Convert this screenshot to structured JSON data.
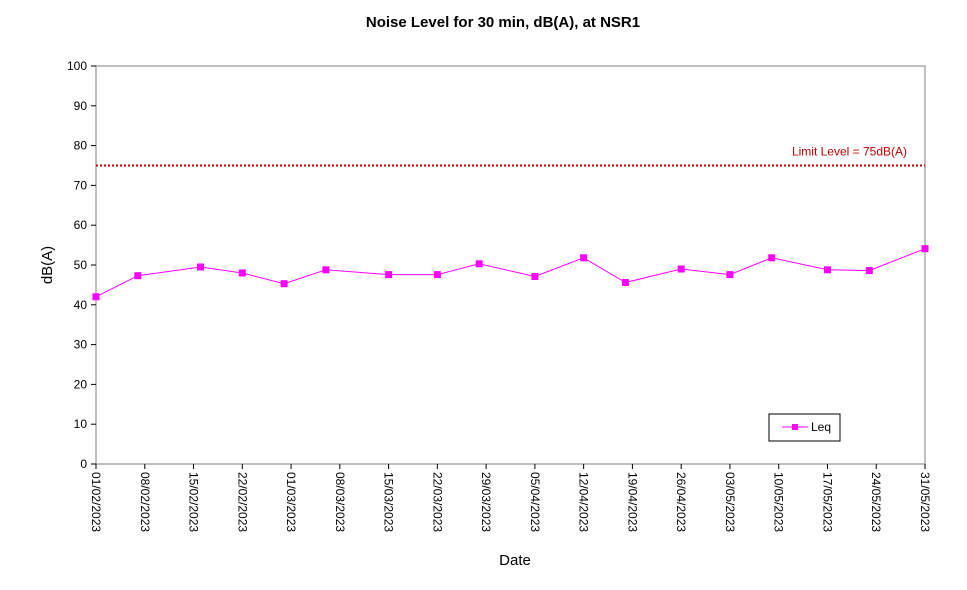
{
  "chart_data": {
    "type": "line",
    "title": "Noise Level for 30 min, dB(A), at NSR1",
    "xlabel": "Date",
    "ylabel": "dB(A)",
    "ylim": [
      0,
      100
    ],
    "yticks": [
      0,
      10,
      20,
      30,
      40,
      50,
      60,
      70,
      80,
      90,
      100
    ],
    "xlim": [
      "2023-02-01",
      "2023-05-31"
    ],
    "xtick_labels": [
      "01/02/2023",
      "08/02/2023",
      "15/02/2023",
      "22/02/2023",
      "01/03/2023",
      "08/03/2023",
      "15/03/2023",
      "22/03/2023",
      "29/03/2023",
      "05/04/2023",
      "12/04/2023",
      "19/04/2023",
      "26/04/2023",
      "03/05/2023",
      "10/05/2023",
      "17/05/2023",
      "24/05/2023",
      "31/05/2023"
    ],
    "xtick_dates": [
      "2023-02-01",
      "2023-02-08",
      "2023-02-15",
      "2023-02-22",
      "2023-03-01",
      "2023-03-08",
      "2023-03-15",
      "2023-03-22",
      "2023-03-29",
      "2023-04-05",
      "2023-04-12",
      "2023-04-19",
      "2023-04-26",
      "2023-05-03",
      "2023-05-10",
      "2023-05-17",
      "2023-05-24",
      "2023-05-31"
    ],
    "grid": false,
    "legend_position": "bottom-right",
    "series": [
      {
        "name": "Leq",
        "color": "#ff00ff",
        "marker": "square",
        "x": [
          "2023-02-01",
          "2023-02-07",
          "2023-02-16",
          "2023-02-22",
          "2023-02-28",
          "2023-03-06",
          "2023-03-15",
          "2023-03-22",
          "2023-03-28",
          "2023-04-05",
          "2023-04-12",
          "2023-04-18",
          "2023-04-26",
          "2023-05-03",
          "2023-05-09",
          "2023-05-17",
          "2023-05-23",
          "2023-05-31"
        ],
        "y": [
          42.0,
          47.3,
          49.5,
          48.0,
          45.3,
          48.8,
          47.6,
          47.6,
          50.3,
          47.1,
          51.8,
          45.6,
          49.0,
          47.6,
          51.8,
          48.8,
          48.6,
          54.1
        ]
      }
    ],
    "reference_lines": [
      {
        "label": "Limit Level  = 75dB(A)",
        "y": 75,
        "color": "#c00000",
        "style": "dotted"
      }
    ]
  }
}
